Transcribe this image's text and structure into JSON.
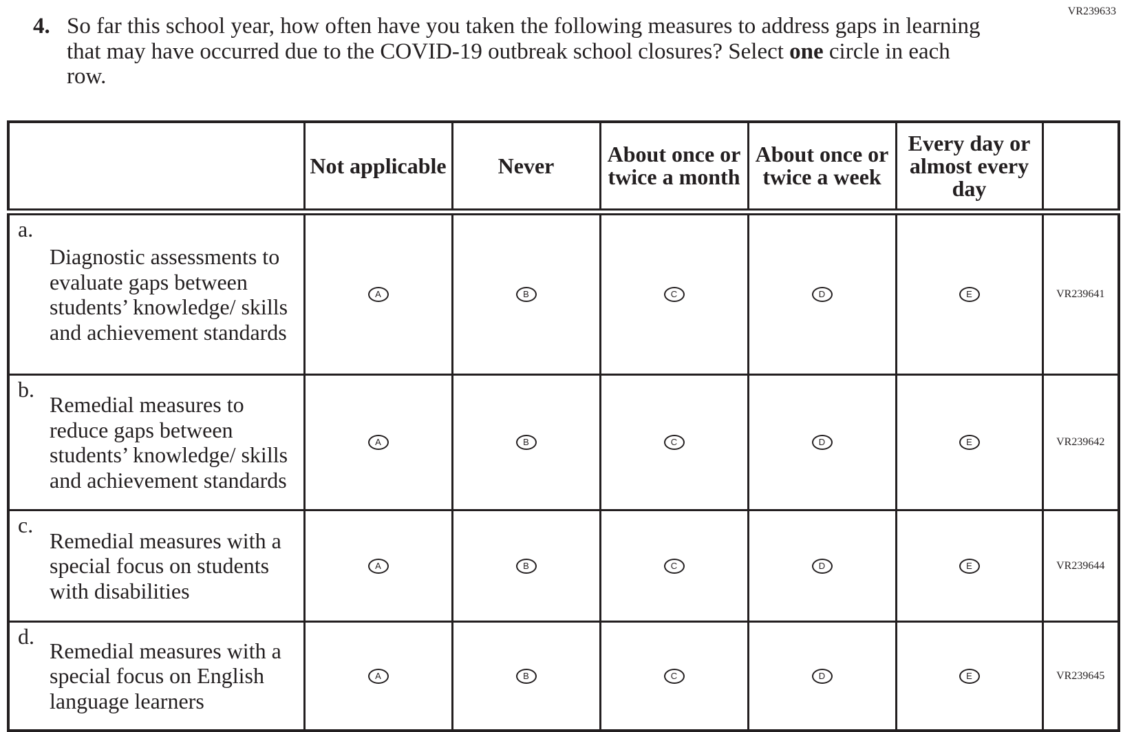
{
  "form_id": "VR239633",
  "question": {
    "number": "4.",
    "text_before": "So far this school year, how often have you taken the following measures to address gaps in learning that may have occurred due to the COVID-19 outbreak school closures? Select ",
    "text_bold": "one",
    "text_after": " circle in each row."
  },
  "columns": [
    "Not applicable",
    "Never",
    "About once or twice a month",
    "About once or twice a week",
    "Every day or almost every day"
  ],
  "rows": [
    {
      "letter": "a.",
      "text": "Diagnostic assessments to evaluate gaps between students’ knowledge/ skills and achievement standards",
      "options": [
        "A",
        "B",
        "C",
        "D",
        "E"
      ],
      "id": "VR239641"
    },
    {
      "letter": "b.",
      "text": "Remedial measures to reduce gaps between students’ knowledge/ skills and achievement standards",
      "options": [
        "A",
        "B",
        "C",
        "D",
        "E"
      ],
      "id": "VR239642"
    },
    {
      "letter": "c.",
      "text": "Remedial measures with a special focus on students with disabilities",
      "options": [
        "A",
        "B",
        "C",
        "D",
        "E"
      ],
      "id": "VR239644"
    },
    {
      "letter": "d.",
      "text": "Remedial measures with a special focus on English language learners",
      "options": [
        "A",
        "B",
        "C",
        "D",
        "E"
      ],
      "id": "VR239645"
    }
  ]
}
